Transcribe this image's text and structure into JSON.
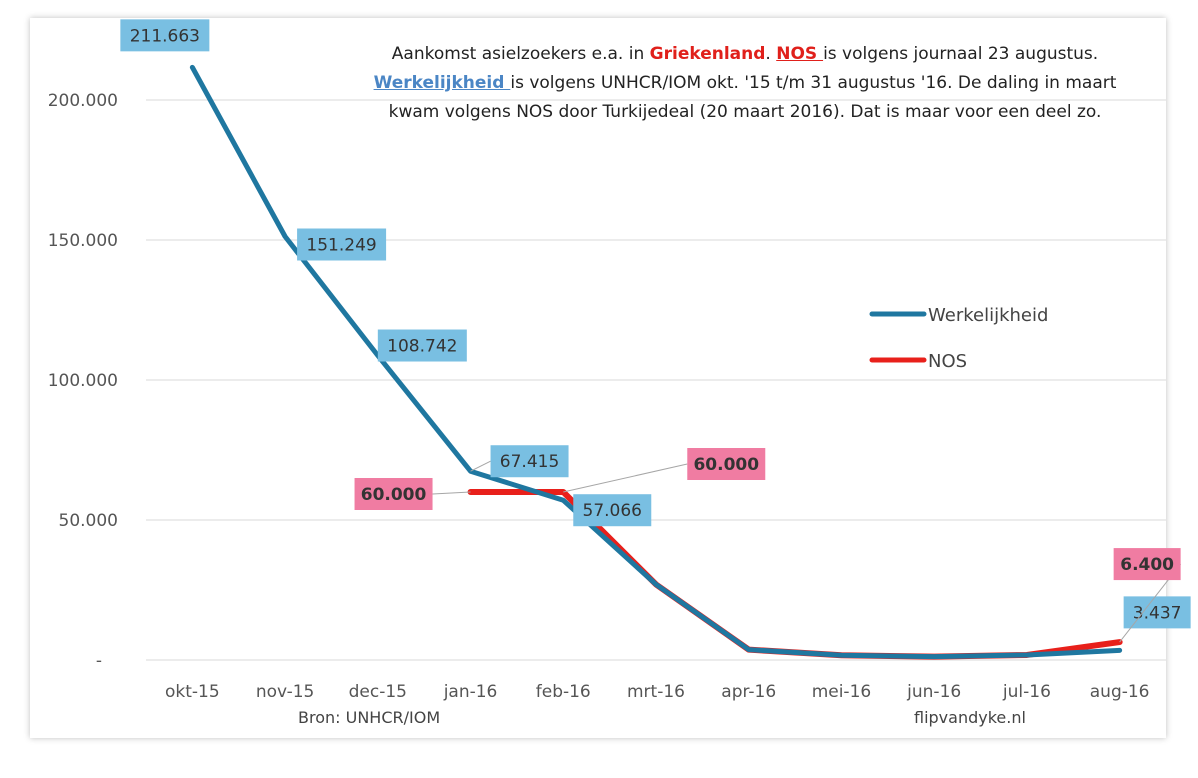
{
  "title": {
    "line1_pre": "Aankomst asielzoekers e.a. in ",
    "line1_country": "Griekenland",
    "line1_dot": ". ",
    "line1_nos": "NOS ",
    "line1_post": "is volgens journaal 23 augustus.",
    "line2_werk": "Werkelijkheid ",
    "line2_post": "is volgens UNHCR/IOM okt. '15  t/m 31 augustus '16. De daling in maart",
    "line3": "kwam volgens NOS door Turkijedeal (20 maart 2016). Dat is maar voor een deel zo."
  },
  "source_left": "Bron: UNHCR/IOM",
  "source_right": "flipvandyke.nl",
  "chart_data": {
    "type": "line",
    "categories": [
      "okt-15",
      "nov-15",
      "dec-15",
      "jan-16",
      "feb-16",
      "mrt-16",
      "apr-16",
      "mei-16",
      "jun-16",
      "jul-16",
      "aug-16"
    ],
    "ylim": [
      0,
      210000
    ],
    "yticks": [
      0,
      50000,
      100000,
      150000,
      200000
    ],
    "ytick_labels": [
      "-",
      "50.000",
      "100.000",
      "150.000",
      "200.000"
    ],
    "grid": true,
    "legend_position": "right",
    "series": [
      {
        "name": "Werkelijkheid",
        "color": "#1f77a0",
        "values": [
          211663,
          151249,
          108742,
          67415,
          57066,
          27000,
          3700,
          1700,
          1200,
          1800,
          3437
        ]
      },
      {
        "name": "NOS",
        "color": "#e8201b",
        "values": [
          null,
          null,
          null,
          60000,
          60000,
          27000,
          3700,
          1700,
          1200,
          1800,
          6400
        ]
      }
    ],
    "data_labels": [
      {
        "series": 0,
        "index": 0,
        "text": "211.663",
        "bg": "#79bfe2"
      },
      {
        "series": 0,
        "index": 1,
        "text": "151.249",
        "bg": "#79bfe2"
      },
      {
        "series": 0,
        "index": 2,
        "text": "108.742",
        "bg": "#79bfe2"
      },
      {
        "series": 0,
        "index": 3,
        "text": "67.415",
        "bg": "#79bfe2"
      },
      {
        "series": 0,
        "index": 4,
        "text": "57.066",
        "bg": "#79bfe2"
      },
      {
        "series": 0,
        "index": 10,
        "text": "3.437",
        "bg": "#79bfe2"
      },
      {
        "series": 1,
        "index": 3,
        "text": "60.000",
        "bg": "#f07ca2"
      },
      {
        "series": 1,
        "index": 4,
        "text": "60.000",
        "bg": "#f07ca2"
      },
      {
        "series": 1,
        "index": 10,
        "text": "6.400",
        "bg": "#f07ca2"
      }
    ]
  }
}
